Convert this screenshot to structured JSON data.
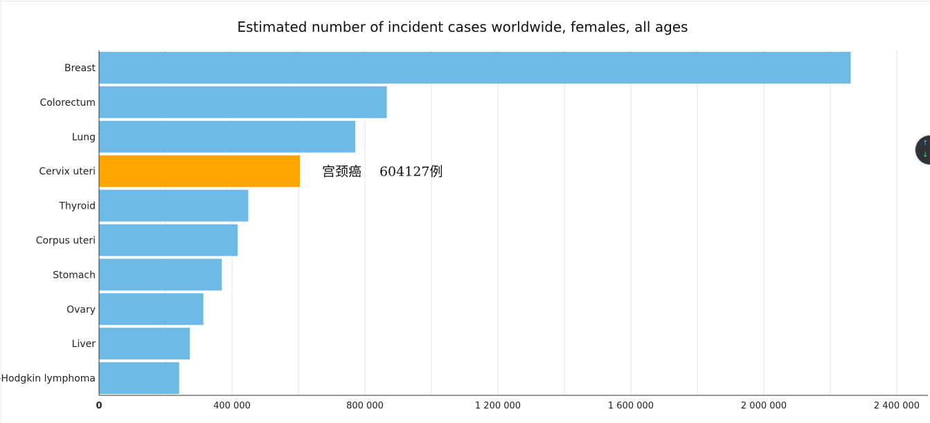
{
  "chart_data": {
    "type": "bar",
    "orientation": "horizontal",
    "title": "Estimated number of incident cases worldwide, females, all ages",
    "xlabel": "",
    "ylabel": "",
    "categories": [
      "Breast",
      "Colorectum",
      "Lung",
      "Cervix uteri",
      "Thyroid",
      "Corpus uteri",
      "Stomach",
      "Ovary",
      "Liver",
      "Non-Hodgkin lymphoma"
    ],
    "values": [
      2261419,
      865630,
      770828,
      604127,
      448915,
      417367,
      369580,
      313959,
      273357,
      241000
    ],
    "highlight_index": 3,
    "xlim": [
      0,
      2500000
    ],
    "xticks": [
      0,
      400000,
      800000,
      1200000,
      1600000,
      2000000,
      2400000
    ],
    "xtick_labels": [
      "0",
      "400 000",
      "800 000",
      "1 200 000",
      "1 600 000",
      "2 000 000",
      "2 400 000"
    ],
    "grid": true,
    "colors": {
      "bar": "#6cbae5",
      "highlight": "#ffa500",
      "grid": "#e6e6e6",
      "axis": "#333333"
    },
    "annotation": {
      "label": "宫颈癌",
      "value_text": "604127例",
      "category": "Cervix uteri"
    }
  },
  "scroll_widget": {
    "up_icon": "arrow-up-icon",
    "down_icon": "arrow-down-icon"
  }
}
